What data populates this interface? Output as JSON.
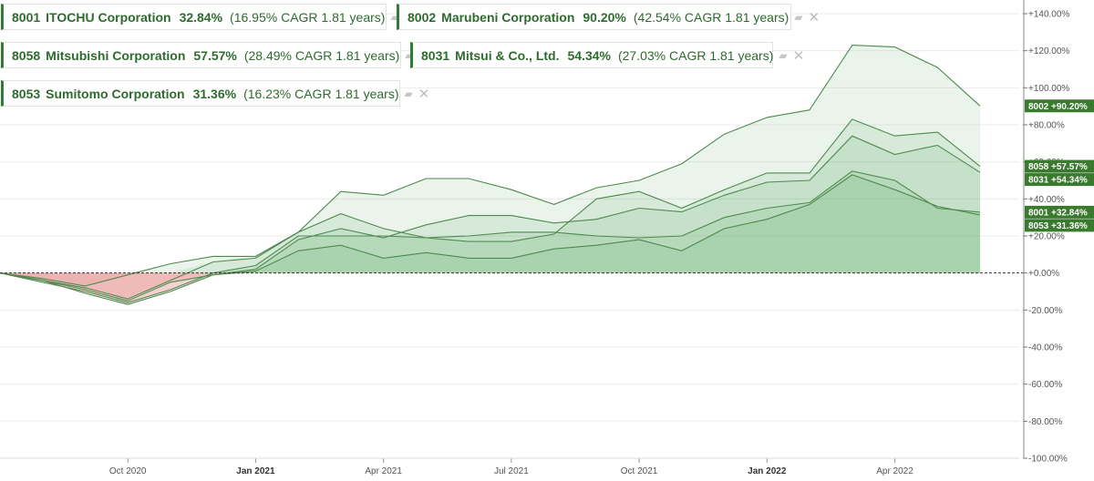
{
  "legend": [
    {
      "code": "8001",
      "name": "ITOCHU Corporation",
      "perf": "32.84%",
      "cagr": "(16.95% CAGR 1.81 years)"
    },
    {
      "code": "8002",
      "name": "Marubeni Corporation",
      "perf": "90.20%",
      "cagr": "(42.54% CAGR 1.81 years)"
    },
    {
      "code": "8058",
      "name": "Mitsubishi Corporation",
      "perf": "57.57%",
      "cagr": "(28.49% CAGR 1.81 years)"
    },
    {
      "code": "8031",
      "name": "Mitsui & Co., Ltd.",
      "perf": "54.34%",
      "cagr": "(27.03% CAGR 1.81 years)"
    },
    {
      "code": "8053",
      "name": "Sumitomo Corporation",
      "perf": "31.36%",
      "cagr": "(16.23% CAGR 1.81 years)"
    }
  ],
  "icons": {
    "stack": "stack-icon",
    "close": "close-icon"
  },
  "colors": {
    "line": "#4e8a4e",
    "positive_fill": "#3f9a45",
    "negative_fill": "#e8a3a3",
    "label_bg": "#3a7a2e",
    "legend_text": "#2e6b2e"
  },
  "chart_data": {
    "type": "area",
    "x": [
      "2020-07",
      "2020-08",
      "2020-09",
      "2020-10",
      "2020-11",
      "2020-12",
      "2021-01",
      "2021-02",
      "2021-03",
      "2021-04",
      "2021-05",
      "2021-06",
      "2021-07",
      "2021-08",
      "2021-09",
      "2021-10",
      "2021-11",
      "2021-12",
      "2022-01",
      "2022-02",
      "2022-03",
      "2022-04",
      "2022-05",
      "2022-06"
    ],
    "x_ticks": [
      {
        "at": "2020-10",
        "label": "Oct 2020",
        "bold": false
      },
      {
        "at": "2021-01",
        "label": "Jan 2021",
        "bold": true
      },
      {
        "at": "2021-04",
        "label": "Apr 2021",
        "bold": false
      },
      {
        "at": "2021-07",
        "label": "Jul 2021",
        "bold": false
      },
      {
        "at": "2021-10",
        "label": "Oct 2021",
        "bold": false
      },
      {
        "at": "2022-01",
        "label": "Jan 2022",
        "bold": true
      },
      {
        "at": "2022-04",
        "label": "Apr 2022",
        "bold": false
      }
    ],
    "ylim": [
      -100,
      140
    ],
    "y_ticks": [
      "+140.00%",
      "+120.00%",
      "+100.00%",
      "+80.00%",
      "+60.00%",
      "+40.00%",
      "+20.00%",
      "+0.00%",
      "-20.00%",
      "-40.00%",
      "-60.00%",
      "-80.00%",
      "-100.00%"
    ],
    "y_tick_values": [
      140,
      120,
      100,
      80,
      60,
      40,
      20,
      0,
      -20,
      -40,
      -60,
      -80,
      -100
    ],
    "grid": true,
    "series": [
      {
        "name": "8002",
        "end_label": "+90.20%",
        "values": [
          0,
          -3,
          -7,
          -1,
          5,
          9,
          9,
          22,
          44,
          42,
          51,
          51,
          45,
          37,
          46,
          50,
          59,
          75,
          84,
          88,
          123,
          122,
          111,
          90.2
        ]
      },
      {
        "name": "8058",
        "end_label": "+57.57%",
        "values": [
          0,
          -4,
          -8,
          -14,
          -4,
          6,
          8,
          22,
          32,
          24,
          19,
          17,
          17,
          21,
          40,
          44,
          35,
          45,
          54,
          54,
          83,
          74,
          76,
          57.57
        ]
      },
      {
        "name": "8031",
        "end_label": "+54.34%",
        "values": [
          0,
          -4,
          -9,
          -15,
          -5,
          -1,
          2,
          18,
          24,
          19,
          26,
          31,
          31,
          27,
          29,
          35,
          33,
          42,
          49,
          50,
          74,
          64,
          69,
          54.34
        ]
      },
      {
        "name": "8001",
        "end_label": "+32.84%",
        "values": [
          0,
          -5,
          -10,
          -16,
          -9,
          0,
          4,
          20,
          20,
          20,
          19,
          20,
          22,
          22,
          20,
          19,
          20,
          30,
          35,
          38,
          55,
          50,
          35,
          32.84
        ]
      },
      {
        "name": "8053",
        "end_label": "+31.36%",
        "values": [
          0,
          -4,
          -11,
          -17,
          -10,
          -1,
          1,
          12,
          15,
          8,
          11,
          8,
          8,
          13,
          15,
          18,
          12,
          24,
          29,
          37,
          53,
          45,
          36,
          31.36
        ]
      }
    ]
  }
}
